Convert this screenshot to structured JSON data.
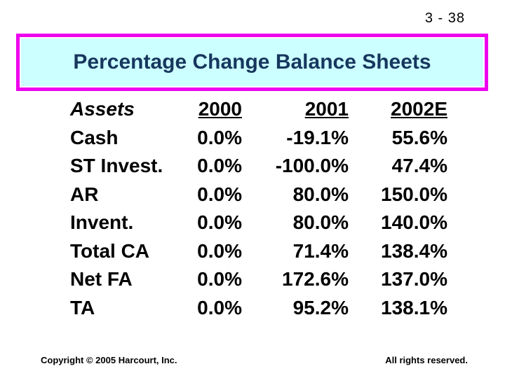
{
  "slide": {
    "number": "3 - 38",
    "title": "Percentage Change Balance Sheets",
    "footer_left": "Copyright © 2005 Harcourt, Inc.",
    "footer_right": "All rights reserved."
  },
  "colors": {
    "title_text": "#17375e",
    "title_bg": "#ccffff",
    "title_border": "#ee00ee",
    "body_text": "#000000"
  },
  "chart_data": {
    "type": "table",
    "title": "Percentage Change Balance Sheets",
    "columns": [
      "Assets",
      "2000",
      "2001",
      "2002E"
    ],
    "rows": [
      {
        "label": "Cash",
        "values": [
          "0.0%",
          "-19.1%",
          "55.6%"
        ]
      },
      {
        "label": "ST Invest.",
        "values": [
          "0.0%",
          "-100.0%",
          "47.4%"
        ]
      },
      {
        "label": "AR",
        "values": [
          "0.0%",
          "80.0%",
          "150.0%"
        ]
      },
      {
        "label": "Invent.",
        "values": [
          "0.0%",
          "80.0%",
          "140.0%"
        ]
      },
      {
        "label": "Total CA",
        "values": [
          "0.0%",
          "71.4%",
          "138.4%"
        ]
      },
      {
        "label": "Net FA",
        "values": [
          "0.0%",
          "172.6%",
          "137.0%"
        ]
      },
      {
        "label": "TA",
        "values": [
          "0.0%",
          "95.2%",
          "138.1%"
        ]
      }
    ]
  }
}
